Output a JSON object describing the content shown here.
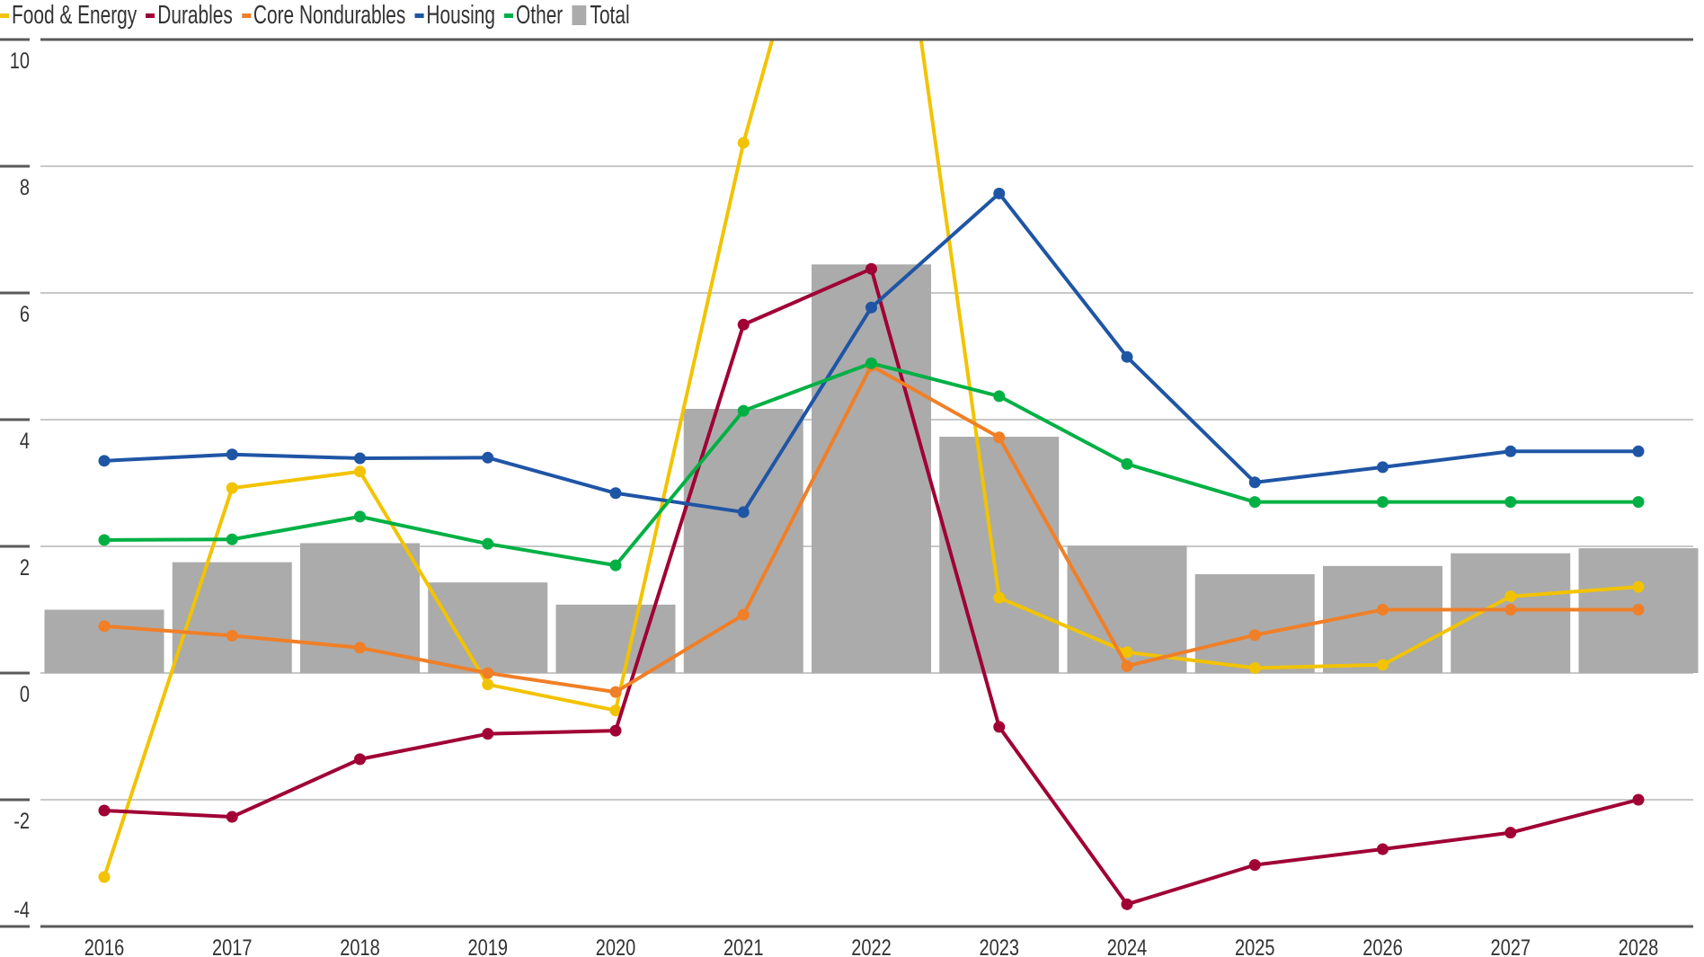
{
  "legend": {
    "items": [
      {
        "label": "Food & Energy",
        "color": "#f2c300",
        "type": "line"
      },
      {
        "label": "Durables",
        "color": "#a00034",
        "type": "line"
      },
      {
        "label": "Core Nondurables",
        "color": "#f07f27",
        "type": "line"
      },
      {
        "label": "Housing",
        "color": "#1f55a5",
        "type": "line"
      },
      {
        "label": "Other",
        "color": "#00b044",
        "type": "line"
      },
      {
        "label": "Total",
        "color": "#ababab",
        "type": "bar"
      }
    ]
  },
  "colors": {
    "axis_dark": "#5a5a5a",
    "grid_light": "#c8c8c8",
    "bar": "#ababab",
    "text": "#333333"
  },
  "chart_data": {
    "type": "bar+line",
    "title": "",
    "xlabel": "",
    "ylabel": "",
    "ylim": [
      -4,
      10
    ],
    "yticks": [
      10,
      8,
      6,
      4,
      2,
      0,
      -2,
      -4
    ],
    "grid": true,
    "legend_position": "top-left",
    "categories": [
      "2016",
      "2017",
      "2018",
      "2019",
      "2020",
      "2021",
      "2022",
      "2023",
      "2024",
      "2025",
      "2026",
      "2027",
      "2028"
    ],
    "bars": {
      "name": "Total",
      "values": [
        1.0,
        1.75,
        2.05,
        1.43,
        1.08,
        4.17,
        6.45,
        3.73,
        2.01,
        1.56,
        1.69,
        1.89,
        1.97
      ]
    },
    "series": [
      {
        "name": "Food & Energy",
        "values": [
          -3.22,
          2.92,
          3.18,
          -0.18,
          -0.59,
          8.37,
          15.6,
          1.19,
          0.33,
          0.08,
          0.13,
          1.21,
          1.36
        ]
      },
      {
        "name": "Durables",
        "values": [
          -2.17,
          -2.27,
          -1.36,
          -0.96,
          -0.91,
          5.5,
          6.38,
          -0.85,
          -3.65,
          -3.03,
          -2.78,
          -2.52,
          -2.0
        ]
      },
      {
        "name": "Core Nondurables",
        "values": [
          0.74,
          0.59,
          0.4,
          0.0,
          -0.3,
          0.92,
          4.85,
          3.72,
          0.11,
          0.6,
          1.0,
          1.0,
          1.0
        ]
      },
      {
        "name": "Housing",
        "values": [
          3.35,
          3.45,
          3.39,
          3.4,
          2.84,
          2.54,
          5.77,
          7.57,
          4.99,
          3.01,
          3.25,
          3.5,
          3.5
        ]
      },
      {
        "name": "Other",
        "values": [
          2.1,
          2.11,
          2.47,
          2.04,
          1.7,
          4.14,
          4.89,
          4.37,
          3.3,
          2.7,
          2.7,
          2.7,
          2.7
        ]
      }
    ]
  }
}
